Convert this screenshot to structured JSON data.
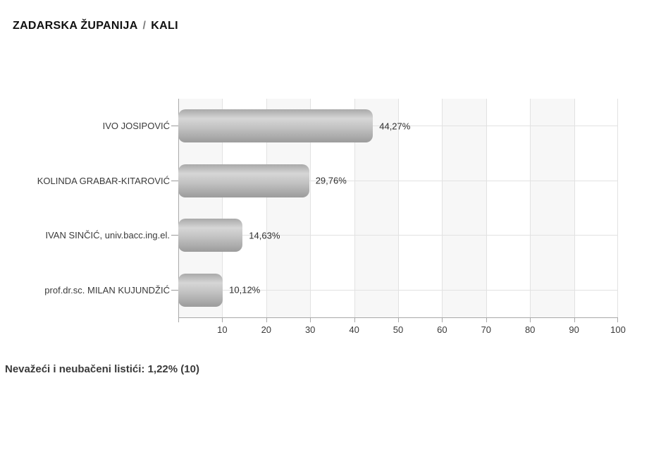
{
  "header": {
    "county": "ZADARSKA ŽUPANIJA",
    "separator": "/",
    "municipality": "KALI"
  },
  "chart_data": {
    "type": "bar",
    "orientation": "horizontal",
    "categories": [
      "IVO JOSIPOVIĆ",
      "KOLINDA GRABAR-KITAROVIĆ",
      "IVAN SINČIĆ, univ.bacc.ing.el.",
      "prof.dr.sc. MILAN KUJUNDŽIĆ"
    ],
    "values": [
      44.27,
      29.76,
      14.63,
      10.12
    ],
    "value_labels": [
      "44,27%",
      "29,76%",
      "14,63%",
      "10,12%"
    ],
    "xlim": [
      0,
      100
    ],
    "x_ticks": [
      10,
      20,
      30,
      40,
      50,
      60,
      70,
      80,
      90,
      100
    ],
    "grid": true,
    "legend": false,
    "title": ""
  },
  "footer": {
    "note": "Nevažeći i neubačeni listići: 1,22% (10)"
  },
  "colors": {
    "title_text": "#111111",
    "separator_text": "#808080",
    "text": "#3a3a3a",
    "band_shade": "#f7f7f7",
    "gridline": "#e2e2e2",
    "axis": "#a9a9a9",
    "bar_gradient": [
      "#a9a9a9",
      "#d6d6d6",
      "#c3c3c3",
      "#9c9c9c"
    ]
  }
}
